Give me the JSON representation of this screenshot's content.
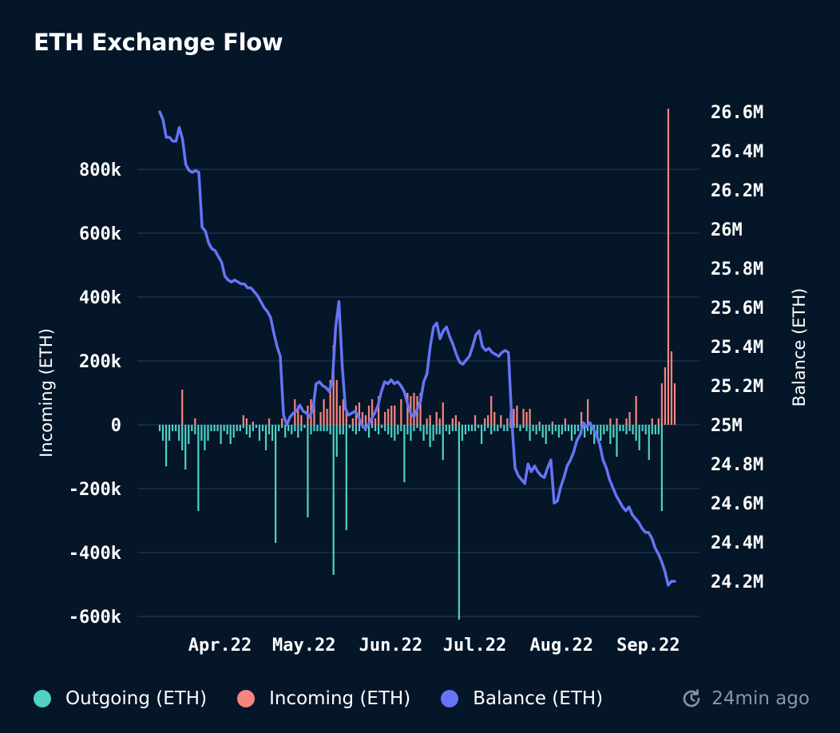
{
  "header": {
    "title": "ETH Exchange Flow"
  },
  "legend": [
    {
      "label": "Outgoing (ETH)",
      "color": "#4fd1c5"
    },
    {
      "label": "Incoming (ETH)",
      "color": "#f6857f"
    },
    {
      "label": "Balance (ETH)",
      "color": "#6674f5"
    }
  ],
  "footer": {
    "updated": "24min ago",
    "icon": "refresh-clock-icon"
  },
  "chart_data": {
    "type": "bar+line",
    "title": "ETH Exchange Flow",
    "x_labels": [
      "Apr.22",
      "May.22",
      "Jun.22",
      "Jul.22",
      "Aug.22",
      "Sep.22"
    ],
    "date_range": [
      "2022-03-23",
      "2022-09-23"
    ],
    "ylabel_left": "Incoming (ETH)",
    "ylabel_right": "Balance (ETH)",
    "y_left": {
      "min": -600000,
      "max": 1000000,
      "ticks": [
        800000,
        600000,
        400000,
        200000,
        0,
        -200000,
        -400000,
        -600000
      ],
      "tick_labels": [
        "800k",
        "600k",
        "400k",
        "200k",
        "0",
        "-200k",
        "-400k",
        "-600k"
      ]
    },
    "y_right": {
      "min": 24000000,
      "max": 26600000,
      "ticks": [
        26600000,
        26400000,
        26200000,
        26000000,
        25800000,
        25600000,
        25400000,
        25200000,
        25000000,
        24800000,
        24600000,
        24400000,
        24200000
      ],
      "tick_labels": [
        "26.6M",
        "26.4M",
        "26.2M",
        "26M",
        "25.8M",
        "25.6M",
        "25.4M",
        "25.2M",
        "25M",
        "24.8M",
        "24.6M",
        "24.4M",
        "24.2M"
      ]
    },
    "grid": "horizontal",
    "series": [
      {
        "name": "Incoming (ETH)",
        "type": "bar",
        "color": "#f6857f",
        "values": [
          0,
          0,
          0,
          0,
          0,
          0,
          0,
          110000,
          0,
          0,
          0,
          20000,
          0,
          0,
          0,
          0,
          0,
          0,
          0,
          0,
          0,
          0,
          0,
          0,
          0,
          0,
          30000,
          20000,
          0,
          10000,
          0,
          0,
          0,
          0,
          20000,
          0,
          0,
          0,
          20000,
          0,
          0,
          0,
          80000,
          60000,
          30000,
          0,
          60000,
          80000,
          70000,
          0,
          40000,
          80000,
          50000,
          140000,
          250000,
          140000,
          60000,
          80000,
          50000,
          0,
          20000,
          60000,
          70000,
          40000,
          30000,
          60000,
          80000,
          20000,
          90000,
          0,
          40000,
          50000,
          60000,
          60000,
          0,
          80000,
          0,
          100000,
          90000,
          100000,
          90000,
          100000,
          0,
          20000,
          30000,
          0,
          40000,
          20000,
          70000,
          0,
          0,
          20000,
          30000,
          10000,
          0,
          0,
          0,
          0,
          30000,
          0,
          0,
          20000,
          30000,
          90000,
          40000,
          0,
          30000,
          0,
          20000,
          40000,
          50000,
          60000,
          0,
          50000,
          40000,
          50000,
          0,
          0,
          10000,
          0,
          0,
          0,
          10000,
          0,
          0,
          0,
          20000,
          0,
          0,
          0,
          0,
          40000,
          0,
          80000,
          0,
          0,
          0,
          0,
          0,
          0,
          20000,
          0,
          20000,
          0,
          0,
          20000,
          40000,
          0,
          90000,
          0,
          0,
          0,
          0,
          20000,
          0,
          20000,
          130000,
          180000,
          990000,
          230000,
          130000
        ]
      },
      {
        "name": "Outgoing (ETH)",
        "type": "bar",
        "color": "#4fd1c5",
        "values": [
          -20000,
          -50000,
          -130000,
          -50000,
          -20000,
          -20000,
          -50000,
          -80000,
          -140000,
          -60000,
          -20000,
          -30000,
          -270000,
          -50000,
          -80000,
          -50000,
          -20000,
          -20000,
          -20000,
          -60000,
          -20000,
          -30000,
          -60000,
          -40000,
          -20000,
          -20000,
          -10000,
          -30000,
          -40000,
          -20000,
          -10000,
          -50000,
          -20000,
          -80000,
          -30000,
          -50000,
          -370000,
          -20000,
          -10000,
          -40000,
          -20000,
          -30000,
          -20000,
          -40000,
          -20000,
          -10000,
          -290000,
          -30000,
          -20000,
          -20000,
          -20000,
          -20000,
          -20000,
          -30000,
          -470000,
          -100000,
          -30000,
          -30000,
          -330000,
          -10000,
          -20000,
          -30000,
          -20000,
          -10000,
          -20000,
          -40000,
          -10000,
          -20000,
          -30000,
          -10000,
          -20000,
          -30000,
          -40000,
          -50000,
          -30000,
          -20000,
          -180000,
          -30000,
          -50000,
          -20000,
          -10000,
          -20000,
          -50000,
          -30000,
          -70000,
          -50000,
          -30000,
          -30000,
          -110000,
          -20000,
          -30000,
          -20000,
          -20000,
          -610000,
          -50000,
          -30000,
          -20000,
          -20000,
          -20000,
          -10000,
          -60000,
          -20000,
          -10000,
          -30000,
          -20000,
          -20000,
          -10000,
          -20000,
          -20000,
          -10000,
          -10000,
          -10000,
          -20000,
          -10000,
          -20000,
          -50000,
          -20000,
          -30000,
          -20000,
          -40000,
          -60000,
          -20000,
          -30000,
          -20000,
          -40000,
          -30000,
          -20000,
          -20000,
          -50000,
          -30000,
          -20000,
          -30000,
          -40000,
          -20000,
          -30000,
          -60000,
          -40000,
          -50000,
          -30000,
          -20000,
          -60000,
          -40000,
          -100000,
          -20000,
          -20000,
          -30000,
          -20000,
          -30000,
          -50000,
          -80000,
          -20000,
          -30000,
          -110000,
          -30000,
          -30000,
          -30000,
          -270000
        ]
      },
      {
        "name": "Balance (ETH)",
        "type": "line",
        "color": "#6674f5",
        "axis": "right",
        "values": [
          26600000,
          26560000,
          26470000,
          26470000,
          26450000,
          26450000,
          26520000,
          26460000,
          26330000,
          26300000,
          26290000,
          26300000,
          26290000,
          26010000,
          25990000,
          25930000,
          25900000,
          25890000,
          25860000,
          25830000,
          25760000,
          25740000,
          25730000,
          25740000,
          25730000,
          25720000,
          25720000,
          25700000,
          25700000,
          25680000,
          25660000,
          25630000,
          25600000,
          25580000,
          25550000,
          25470000,
          25400000,
          25350000,
          25050000,
          25000000,
          25040000,
          25060000,
          25070000,
          25100000,
          25070000,
          25060000,
          25040000,
          25080000,
          25210000,
          25220000,
          25200000,
          25190000,
          25170000,
          25230000,
          25500000,
          25630000,
          25300000,
          25080000,
          25050000,
          25060000,
          25070000,
          25040000,
          25000000,
          24980000,
          25000000,
          25030000,
          25060000,
          25100000,
          25170000,
          25220000,
          25210000,
          25230000,
          25210000,
          25220000,
          25200000,
          25170000,
          25110000,
          25060000,
          25040000,
          25080000,
          25120000,
          25220000,
          25260000,
          25400000,
          25500000,
          25520000,
          25440000,
          25480000,
          25500000,
          25450000,
          25410000,
          25360000,
          25320000,
          25310000,
          25330000,
          25350000,
          25400000,
          25460000,
          25480000,
          25400000,
          25380000,
          25390000,
          25370000,
          25360000,
          25350000,
          25370000,
          25380000,
          25370000,
          25020000,
          24780000,
          24740000,
          24720000,
          24700000,
          24800000,
          24760000,
          24790000,
          24760000,
          24740000,
          24730000,
          24780000,
          24820000,
          24600000,
          24610000,
          24680000,
          24730000,
          24790000,
          24820000,
          24860000,
          24920000,
          24950000,
          25010000,
          24990000,
          25010000,
          24980000,
          24950000,
          24900000,
          24820000,
          24780000,
          24720000,
          24680000,
          24640000,
          24610000,
          24580000,
          24560000,
          24580000,
          24540000,
          24520000,
          24500000,
          24470000,
          24450000,
          24450000,
          24420000,
          24370000,
          24340000,
          24300000,
          24250000,
          24180000,
          24200000,
          24200000
        ]
      }
    ]
  }
}
